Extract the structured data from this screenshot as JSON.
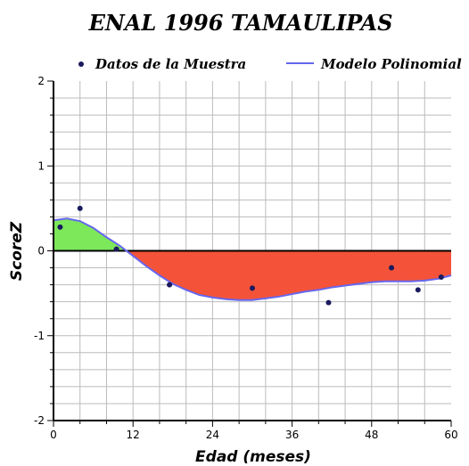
{
  "chart_data": {
    "type": "line",
    "title": "ENAL 1996 TAMAULIPAS",
    "xlabel": "Edad (meses)",
    "ylabel": "ScoreZ",
    "xlim": [
      0,
      60
    ],
    "ylim": [
      -2,
      2
    ],
    "x_ticks": [
      0,
      12,
      24,
      36,
      48,
      60
    ],
    "y_ticks": [
      -2,
      -1,
      0,
      1,
      2
    ],
    "grid": true,
    "legend_position": "top",
    "series": [
      {
        "name": "Datos de la Muestra",
        "kind": "scatter",
        "color": "#1a1a5e",
        "points": [
          {
            "x": 1,
            "y": 0.28
          },
          {
            "x": 4,
            "y": 0.5
          },
          {
            "x": 9.5,
            "y": 0.02
          },
          {
            "x": 17.5,
            "y": -0.4
          },
          {
            "x": 30,
            "y": -0.44
          },
          {
            "x": 41.5,
            "y": -0.61
          },
          {
            "x": 51,
            "y": -0.2
          },
          {
            "x": 55,
            "y": -0.46
          },
          {
            "x": 58.5,
            "y": -0.31
          }
        ]
      },
      {
        "name": "Modelo Polinomial",
        "kind": "line",
        "color": "#6666ee",
        "points": [
          {
            "x": 0,
            "y": 0.36
          },
          {
            "x": 2,
            "y": 0.38
          },
          {
            "x": 4,
            "y": 0.35
          },
          {
            "x": 6,
            "y": 0.27
          },
          {
            "x": 8,
            "y": 0.16
          },
          {
            "x": 10,
            "y": 0.06
          },
          {
            "x": 12,
            "y": -0.06
          },
          {
            "x": 14,
            "y": -0.18
          },
          {
            "x": 16,
            "y": -0.29
          },
          {
            "x": 18,
            "y": -0.39
          },
          {
            "x": 20,
            "y": -0.46
          },
          {
            "x": 22,
            "y": -0.52
          },
          {
            "x": 24,
            "y": -0.55
          },
          {
            "x": 26,
            "y": -0.57
          },
          {
            "x": 28,
            "y": -0.58
          },
          {
            "x": 30,
            "y": -0.58
          },
          {
            "x": 32,
            "y": -0.56
          },
          {
            "x": 34,
            "y": -0.54
          },
          {
            "x": 36,
            "y": -0.51
          },
          {
            "x": 38,
            "y": -0.48
          },
          {
            "x": 40,
            "y": -0.46
          },
          {
            "x": 42,
            "y": -0.43
          },
          {
            "x": 44,
            "y": -0.41
          },
          {
            "x": 46,
            "y": -0.39
          },
          {
            "x": 48,
            "y": -0.37
          },
          {
            "x": 50,
            "y": -0.36
          },
          {
            "x": 52,
            "y": -0.36
          },
          {
            "x": 54,
            "y": -0.36
          },
          {
            "x": 56,
            "y": -0.35
          },
          {
            "x": 58,
            "y": -0.33
          },
          {
            "x": 60,
            "y": -0.29
          }
        ]
      }
    ],
    "fill_positive_color": "#7ce85a",
    "fill_negative_color": "#f4533a",
    "zero_line_color": "#000000",
    "grid_color": "#bbbbbb"
  }
}
